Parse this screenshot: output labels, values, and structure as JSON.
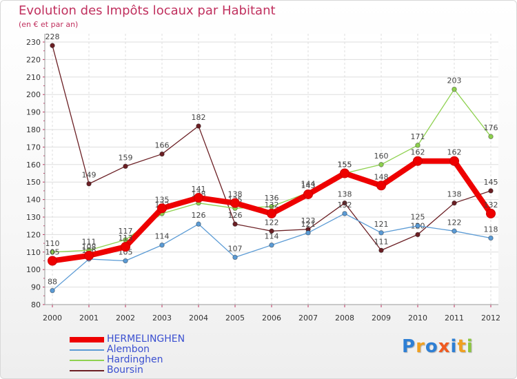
{
  "colors": {
    "HERMELINGHEN": "#ee0000",
    "Alembon": "#5b9bd5",
    "Hardinghen": "#8ed14f",
    "Boursin": "#6b1f24",
    "grid": "#dddddd",
    "title": "#c0305e"
  },
  "logo": {
    "text": "Proxiti",
    "letter_colors": [
      "#2e7fd4",
      "#f0a020",
      "#2e7fd4",
      "#f05a20",
      "#2e7fd4",
      "#f0a020",
      "#8cc63f"
    ]
  },
  "chart_data": {
    "type": "line",
    "title": "Evolution des Impôts locaux par Habitant",
    "subtitle": "(en € et par an)",
    "xlabel": "",
    "ylabel": "",
    "ylim": [
      80,
      230
    ],
    "yticks": [
      80,
      90,
      100,
      110,
      120,
      130,
      140,
      150,
      160,
      170,
      180,
      190,
      200,
      210,
      220,
      230
    ],
    "grid": true,
    "legend_position": "bottom-left",
    "x": [
      "2000",
      "2001",
      "2002",
      "2003",
      "2004",
      "2005",
      "2006",
      "2007",
      "2008",
      "2009",
      "2010",
      "2011",
      "2012"
    ],
    "series": [
      {
        "name": "Boursin",
        "values": [
          228,
          149,
          159,
          166,
          182,
          126,
          122,
          123,
          138,
          111,
          120,
          138,
          145
        ]
      },
      {
        "name": "Alembon",
        "values": [
          88,
          106,
          105,
          114,
          126,
          107,
          114,
          121,
          132,
          121,
          125,
          122,
          118
        ]
      },
      {
        "name": "Hardinghen",
        "values": [
          110,
          111,
          117,
          132,
          138,
          135,
          136,
          144,
          155,
          160,
          171,
          203,
          176
        ]
      },
      {
        "name": "HERMELINGHEN",
        "values": [
          105,
          108,
          113,
          135,
          141,
          138,
          132,
          143,
          155,
          148,
          162,
          162,
          132
        ]
      }
    ],
    "legend": [
      "HERMELINGHEN",
      "Alembon",
      "Hardinghen",
      "Boursin"
    ]
  }
}
